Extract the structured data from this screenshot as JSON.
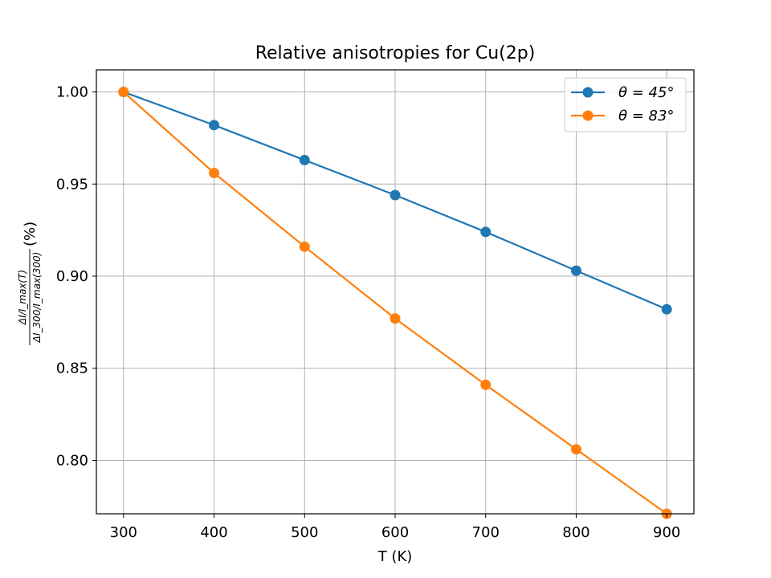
{
  "chart_data": {
    "type": "line",
    "title": "Relative anisotropies for Cu(2p)",
    "xlabel": "T (K)",
    "ylabel": "ΔI/I_max(T) / ΔI_300/I_max(300) (%)",
    "ylabel_fraction": {
      "numerator": "ΔI/I_max(T)",
      "denominator": "ΔI_300/I_max(300)",
      "suffix": "(%)"
    },
    "x": [
      300,
      400,
      500,
      600,
      700,
      800,
      900
    ],
    "xticks": [
      "300",
      "400",
      "500",
      "600",
      "700",
      "800",
      "900"
    ],
    "yticks": [
      "0.80",
      "0.85",
      "0.90",
      "0.95",
      "1.00"
    ],
    "ytick_values": [
      0.8,
      0.85,
      0.9,
      0.95,
      1.0
    ],
    "xlim": [
      270,
      930
    ],
    "ylim": [
      0.771,
      1.012
    ],
    "grid": true,
    "legend_position": "top-right",
    "series": [
      {
        "name": "θ = 45°",
        "color": "#1f77b4",
        "values": [
          1.0,
          0.982,
          0.963,
          0.944,
          0.924,
          0.903,
          0.882
        ]
      },
      {
        "name": "θ = 83°",
        "color": "#ff7f0e",
        "values": [
          1.0,
          0.956,
          0.916,
          0.877,
          0.841,
          0.806,
          0.771
        ]
      }
    ]
  }
}
